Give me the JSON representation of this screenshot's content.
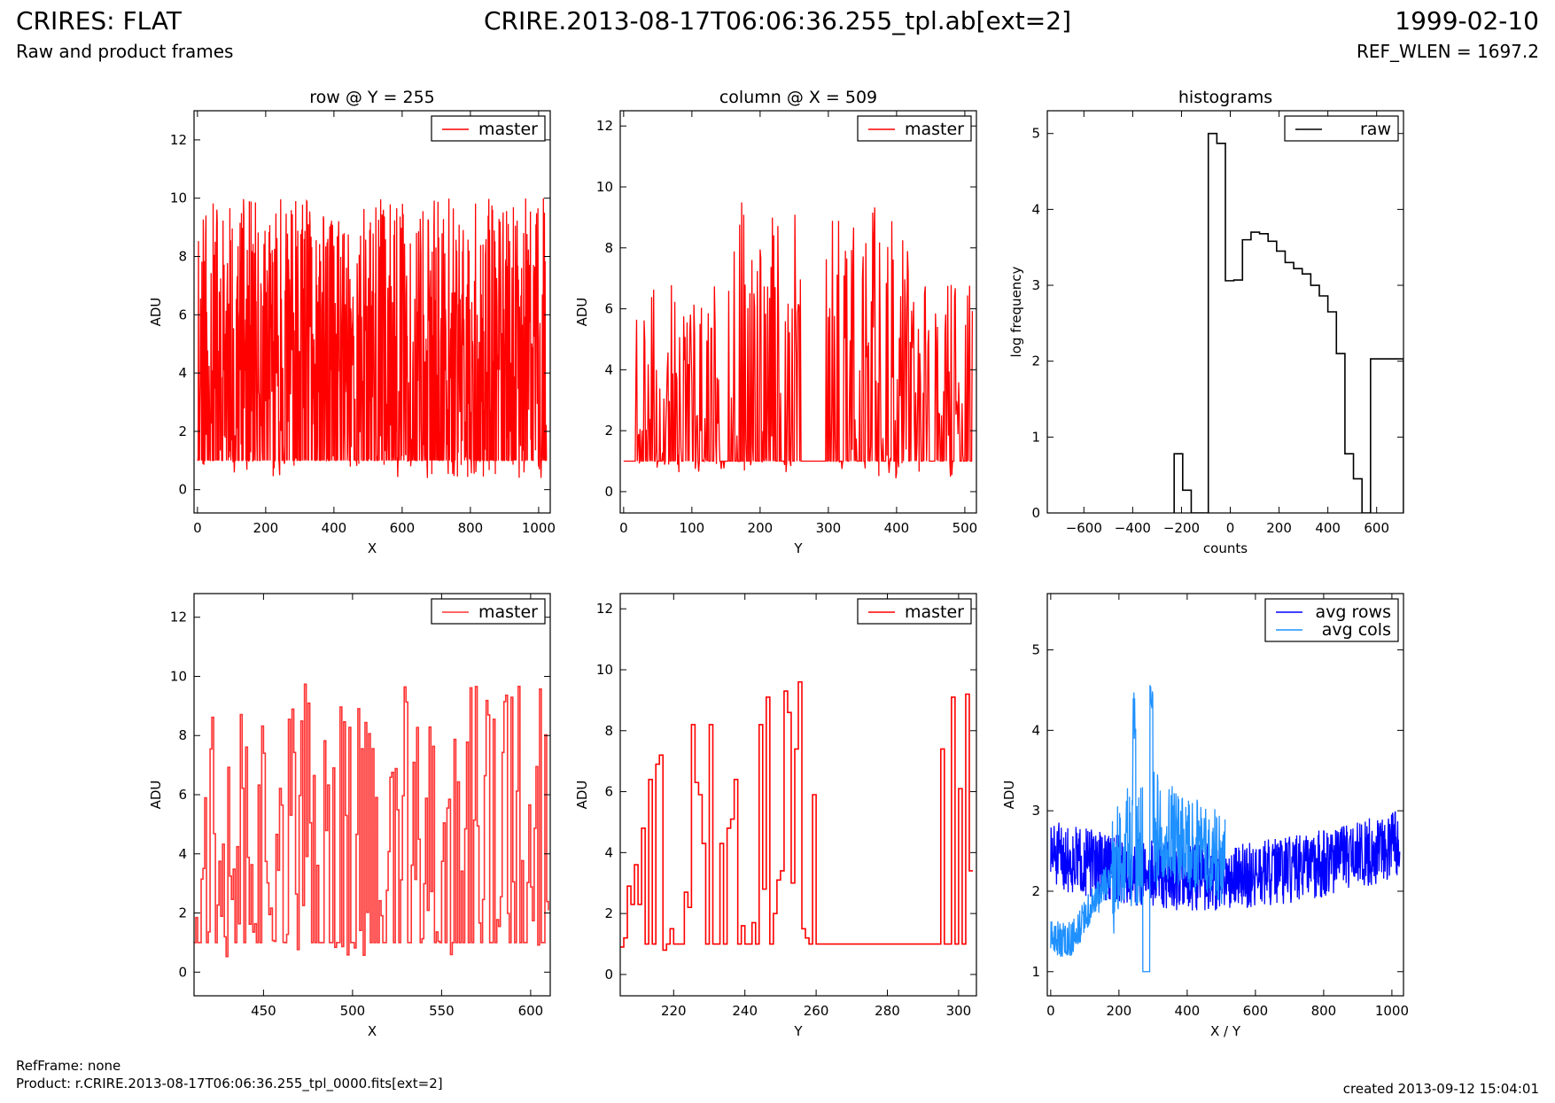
{
  "header": {
    "left_title": "CRIRES: FLAT",
    "left_subtitle": "Raw and product frames",
    "center_title": "CRIRE.2013-08-17T06:06:36.255_tpl.ab[ext=2]",
    "right_title": "1999-02-10",
    "right_subtitle": "REF_WLEN = 1697.2"
  },
  "footer": {
    "ref_frame": "RefFrame: none",
    "product": "Product: r.CRIRE.2013-08-17T06:06:36.255_tpl_0000.fits[ext=2]",
    "created": "created 2013-09-12 15:04:01"
  },
  "colors": {
    "red": "#ff0000",
    "red_light": "#ff3333",
    "black": "#000000",
    "blue": "#0000ff",
    "light_blue": "#1e90ff"
  },
  "chart_data": [
    {
      "id": "row",
      "type": "line",
      "title": "row @ Y = 255",
      "xlabel": "X",
      "ylabel": "ADU",
      "xlim": [
        -10,
        1034
      ],
      "ylim": [
        -0.8,
        13
      ],
      "xticks": [
        0,
        200,
        400,
        600,
        800,
        1000
      ],
      "yticks": [
        0,
        2,
        4,
        6,
        8,
        10,
        12
      ],
      "legend_loc": "top-right",
      "series": [
        {
          "name": "master",
          "color": "#ff0000",
          "step": false,
          "n": 1024,
          "x0": 0,
          "x1": 1023,
          "floor": 1.0,
          "high": 10.0,
          "seed": 11,
          "mode": "noise"
        }
      ]
    },
    {
      "id": "col",
      "type": "line",
      "title": "column @ X = 509",
      "xlabel": "Y",
      "ylabel": "ADU",
      "xlim": [
        -5,
        517
      ],
      "ylim": [
        -0.7,
        12.5
      ],
      "xticks": [
        0,
        100,
        200,
        300,
        400,
        500
      ],
      "yticks": [
        0,
        2,
        4,
        6,
        8,
        10,
        12
      ],
      "legend_loc": "top-right",
      "series": [
        {
          "name": "master",
          "color": "#ff0000",
          "step": false,
          "n": 512,
          "x0": 0,
          "x1": 511,
          "floor": 1.0,
          "high": 9.6,
          "seed": 23,
          "mode": "sparse",
          "flat_ranges": [
            [
              0,
              15
            ],
            [
              260,
              295
            ]
          ]
        }
      ]
    },
    {
      "id": "hist",
      "type": "histogram",
      "title": "histograms",
      "xlabel": "counts",
      "ylabel": "log frequency",
      "xlim": [
        -750,
        710
      ],
      "ylim": [
        0,
        5.3
      ],
      "xticks": [
        -600,
        -400,
        -200,
        0,
        200,
        400,
        600
      ],
      "yticks": [
        0,
        1,
        2,
        3,
        4,
        5
      ],
      "legend_loc": "top-right",
      "series": [
        {
          "name": "raw",
          "color": "#000000",
          "edges": [
            -230,
            -195,
            -160,
            -125,
            -90,
            -55,
            -20,
            15,
            50,
            85,
            120,
            155,
            190,
            225,
            260,
            295,
            330,
            365,
            400,
            435,
            470,
            505,
            540,
            575,
            610,
            645,
            680,
            710
          ],
          "values": [
            0.78,
            0.3,
            0,
            0,
            5.0,
            4.87,
            3.06,
            3.07,
            3.6,
            3.7,
            3.68,
            3.58,
            3.45,
            3.3,
            3.22,
            3.15,
            3.0,
            2.86,
            2.65,
            2.1,
            0.78,
            0.45,
            0,
            2.03,
            2.03,
            2.03,
            2.03
          ]
        }
      ]
    },
    {
      "id": "row_zoom",
      "type": "line",
      "title": "",
      "xlabel": "X",
      "ylabel": "ADU",
      "xlim": [
        411,
        611
      ],
      "ylim": [
        -0.8,
        12.8
      ],
      "xticks": [
        450,
        500,
        550,
        600
      ],
      "yticks": [
        0,
        2,
        4,
        6,
        8,
        10,
        12
      ],
      "legend_loc": "top-right",
      "series": [
        {
          "name": "master",
          "color": "#ff3333",
          "step": true,
          "n": 200,
          "x0": 411,
          "x1": 610,
          "floor": 1.0,
          "high": 9.8,
          "seed": 37,
          "mode": "noise"
        }
      ]
    },
    {
      "id": "col_zoom",
      "type": "line",
      "title": "",
      "xlabel": "Y",
      "ylabel": "ADU",
      "xlim": [
        205,
        305
      ],
      "ylim": [
        -0.7,
        12.5
      ],
      "xticks": [
        220,
        240,
        260,
        280,
        300
      ],
      "yticks": [
        0,
        2,
        4,
        6,
        8,
        10,
        12
      ],
      "legend_loc": "top-right",
      "series": [
        {
          "name": "master",
          "color": "#ff0000",
          "step": true,
          "x": [
            205,
            206,
            207,
            208,
            209,
            210,
            211,
            212,
            213,
            214,
            215,
            216,
            217,
            218,
            219,
            220,
            221,
            222,
            223,
            224,
            225,
            226,
            227,
            228,
            229,
            230,
            231,
            232,
            233,
            234,
            235,
            236,
            237,
            238,
            239,
            240,
            241,
            242,
            243,
            244,
            245,
            246,
            247,
            248,
            249,
            250,
            251,
            252,
            253,
            254,
            255,
            256,
            257,
            258,
            259,
            260,
            261,
            290,
            292,
            293,
            294,
            295,
            296,
            297,
            298,
            299,
            300,
            301,
            302,
            303,
            304
          ],
          "y": [
            0.9,
            1.2,
            2.9,
            2.3,
            3.6,
            2.3,
            4.8,
            1.0,
            6.4,
            1.0,
            6.9,
            7.2,
            0.8,
            1.0,
            1.5,
            1.0,
            1.0,
            1.0,
            2.7,
            2.2,
            8.2,
            6.3,
            5.9,
            4.3,
            1.0,
            8.2,
            1.0,
            1.0,
            4.3,
            1.0,
            4.8,
            5.1,
            6.4,
            1.0,
            1.6,
            1.0,
            1.0,
            1.7,
            1.0,
            8.2,
            2.8,
            9.1,
            1.0,
            2.0,
            3.1,
            3.4,
            9.3,
            8.6,
            3.0,
            7.4,
            9.6,
            1.5,
            1.2,
            1.0,
            5.9,
            1.0,
            1.0,
            1.0,
            1.0,
            1.0,
            1.0,
            7.4,
            1.0,
            1.0,
            9.1,
            1.0,
            6.1,
            1.0,
            9.2,
            3.4,
            3.4
          ]
        }
      ]
    },
    {
      "id": "avg",
      "type": "line",
      "title": "",
      "xlabel": "X / Y",
      "ylabel": "ADU",
      "xlim": [
        -10,
        1034
      ],
      "ylim": [
        0.7,
        5.7
      ],
      "xticks": [
        0,
        200,
        400,
        600,
        800,
        1000
      ],
      "yticks": [
        1,
        2,
        3,
        4,
        5
      ],
      "legend_loc": "top-right",
      "series": [
        {
          "name": "avg rows",
          "color": "#0000ff",
          "step": false,
          "n": 1024,
          "x0": 0,
          "x1": 1023,
          "seed": 51,
          "mode": "avgrows"
        },
        {
          "name": "avg cols",
          "color": "#1e90ff",
          "step": false,
          "n": 512,
          "x0": 0,
          "x1": 511,
          "seed": 63,
          "mode": "avgcols"
        }
      ]
    }
  ]
}
